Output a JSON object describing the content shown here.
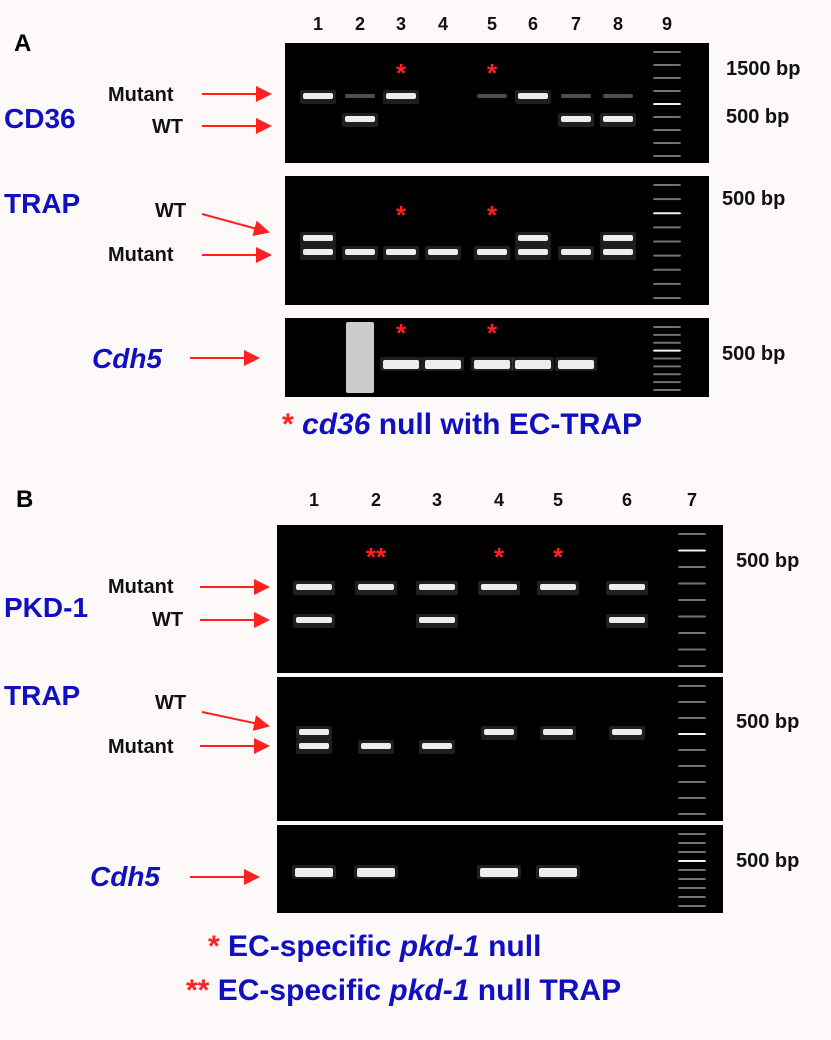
{
  "panel_a": {
    "label": "A",
    "lanes": [
      "1",
      "2",
      "3",
      "4",
      "5",
      "6",
      "7",
      "8",
      "9"
    ],
    "gels": [
      {
        "gene": "CD36",
        "italic": false,
        "band_labels": [
          "Mutant",
          "WT"
        ],
        "markers": [
          "1500 bp",
          "500 bp"
        ],
        "lanes": [
          [
            "mutant"
          ],
          [
            "wt",
            "mutant-faint"
          ],
          [
            "mutant"
          ],
          [],
          [
            "mutant-faint"
          ],
          [
            "mutant"
          ],
          [
            "wt",
            "mutant-faint"
          ],
          [
            "wt",
            "mutant-faint"
          ],
          [
            "ladder"
          ]
        ],
        "starred_lanes": [
          3,
          5
        ]
      },
      {
        "gene": "TRAP",
        "italic": false,
        "band_labels": [
          "WT",
          "Mutant"
        ],
        "markers": [
          "500 bp"
        ],
        "lanes": [
          [
            "wt",
            "mutant"
          ],
          [
            "mutant"
          ],
          [
            "mutant"
          ],
          [
            "mutant"
          ],
          [
            "mutant"
          ],
          [
            "wt",
            "mutant"
          ],
          [
            "mutant"
          ],
          [
            "wt",
            "mutant"
          ],
          [
            "ladder"
          ]
        ],
        "starred_lanes": [
          3,
          5
        ]
      },
      {
        "gene": "Cdh5",
        "italic": true,
        "band_labels": [],
        "markers": [
          "500 bp"
        ],
        "lanes": [
          [],
          [
            "smear"
          ],
          [
            "band"
          ],
          [
            "band"
          ],
          [
            "band"
          ],
          [
            "band"
          ],
          [
            "band"
          ],
          [],
          [
            "ladder"
          ]
        ],
        "starred_lanes": [
          3,
          5
        ]
      }
    ],
    "caption": {
      "star": "*",
      "italic": "cd36",
      "text": " null with EC-TRAP"
    }
  },
  "panel_b": {
    "label": "B",
    "lanes": [
      "1",
      "2",
      "3",
      "4",
      "5",
      "6",
      "7"
    ],
    "gels": [
      {
        "gene": "PKD-1",
        "italic": false,
        "band_labels": [
          "Mutant",
          "WT"
        ],
        "markers": [
          "500 bp"
        ],
        "lanes": [
          [
            "mutant",
            "wt"
          ],
          [
            "mutant"
          ],
          [
            "mutant",
            "wt"
          ],
          [
            "mutant"
          ],
          [
            "mutant"
          ],
          [
            "mutant",
            "wt"
          ],
          [
            "ladder"
          ]
        ],
        "stars": [
          {
            "lane": 2,
            "text": "**"
          },
          {
            "lane": 4,
            "text": "*"
          },
          {
            "lane": 5,
            "text": "*"
          }
        ]
      },
      {
        "gene": "TRAP",
        "italic": false,
        "band_labels": [
          "WT",
          "Mutant"
        ],
        "markers": [
          "500 bp"
        ],
        "lanes": [
          [
            "wt",
            "mutant"
          ],
          [
            "mutant"
          ],
          [
            "mutant"
          ],
          [
            "wt"
          ],
          [
            "wt"
          ],
          [
            "wt"
          ],
          [
            "ladder"
          ]
        ]
      },
      {
        "gene": "Cdh5",
        "italic": true,
        "band_labels": [],
        "markers": [
          "500 bp"
        ],
        "lanes": [
          [
            "band"
          ],
          [
            "band"
          ],
          [],
          [
            "band"
          ],
          [
            "band"
          ],
          [],
          [
            "ladder"
          ]
        ]
      }
    ],
    "captions": [
      {
        "star": "*",
        "pre": " EC-specific ",
        "italic": "pkd-1",
        "post": " null"
      },
      {
        "star": "**",
        "pre": " EC-specific ",
        "italic": "pkd-1",
        "post": " null TRAP"
      }
    ]
  },
  "colors": {
    "gene_label": "#1010c0",
    "star": "#ff2020",
    "arrow": "#ff2020",
    "gel_bg": "#000000"
  }
}
